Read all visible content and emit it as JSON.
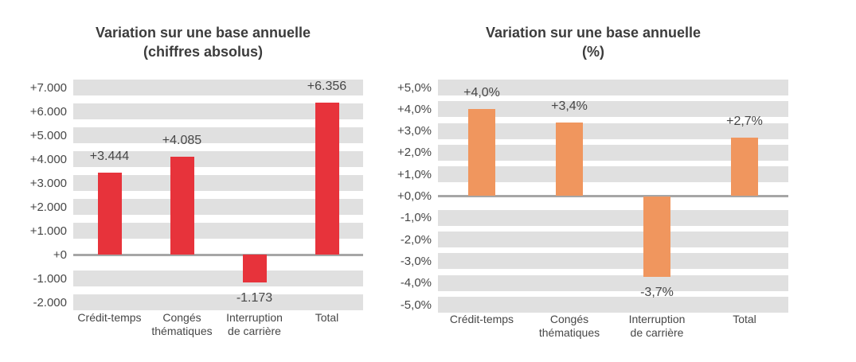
{
  "page": {
    "background": "#FFFFFF"
  },
  "styles": {
    "band_color": "#E0E0E0",
    "zero_line_color": "#A6A6A6",
    "label_color": "#474747",
    "title_color": "#3C3C3C"
  },
  "chart_data": [
    {
      "type": "bar",
      "title": [
        "Variation sur une base annuelle",
        "(chiffres absolus)"
      ],
      "grid_style": "horizontal-bands",
      "legend": null,
      "categories": [
        [
          "Crédit-temps"
        ],
        [
          "Congés",
          "thématiques"
        ],
        [
          "Interruption",
          "de carrière"
        ],
        [
          "Total"
        ]
      ],
      "values": [
        3444,
        4085,
        -1173,
        6356
      ],
      "value_labels": [
        "+3.444",
        "+4.085",
        "-1.173",
        "+6.356"
      ],
      "bar_color": "#E7333B",
      "y_axis": {
        "max": 7000,
        "min": -2000,
        "step": 1000,
        "tick_labels": [
          "+7.000",
          "+6.000",
          "+5.000",
          "+4.000",
          "+3.000",
          "+2.000",
          "+1.000",
          "+0",
          "-1.000",
          "-2.000"
        ]
      }
    },
    {
      "type": "bar",
      "title": [
        "Variation sur une base annuelle",
        "(%)"
      ],
      "grid_style": "horizontal-bands",
      "legend": null,
      "categories": [
        [
          "Crédit-temps"
        ],
        [
          "Congés",
          "thématiques"
        ],
        [
          "Interruption",
          "de carrière"
        ],
        [
          "Total"
        ]
      ],
      "values": [
        4.0,
        3.4,
        -3.7,
        2.7
      ],
      "value_labels": [
        "+4,0%",
        "+3,4%",
        "-3,7%",
        "+2,7%"
      ],
      "bar_color": "#F0965E",
      "y_axis": {
        "max": 5,
        "min": -5,
        "step": 1,
        "tick_labels": [
          "+5,0%",
          "+4,0%",
          "+3,0%",
          "+2,0%",
          "+1,0%",
          "+0,0%",
          "-1,0%",
          "-2,0%",
          "-3,0%",
          "-4,0%",
          "-5,0%"
        ]
      }
    }
  ]
}
